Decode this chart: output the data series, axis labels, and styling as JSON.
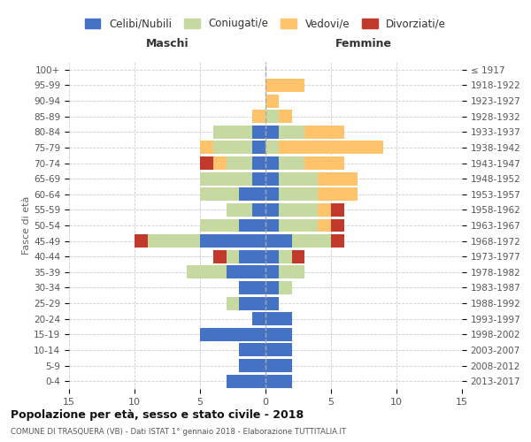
{
  "age_groups": [
    "0-4",
    "5-9",
    "10-14",
    "15-19",
    "20-24",
    "25-29",
    "30-34",
    "35-39",
    "40-44",
    "45-49",
    "50-54",
    "55-59",
    "60-64",
    "65-69",
    "70-74",
    "75-79",
    "80-84",
    "85-89",
    "90-94",
    "95-99",
    "100+"
  ],
  "birth_years": [
    "2013-2017",
    "2008-2012",
    "2003-2007",
    "1998-2002",
    "1993-1997",
    "1988-1992",
    "1983-1987",
    "1978-1982",
    "1973-1977",
    "1968-1972",
    "1963-1967",
    "1958-1962",
    "1953-1957",
    "1948-1952",
    "1943-1947",
    "1938-1942",
    "1933-1937",
    "1928-1932",
    "1923-1927",
    "1918-1922",
    "≤ 1917"
  ],
  "colors": {
    "celibe": "#4472C4",
    "coniugato": "#C6D9A0",
    "vedovo": "#FFC36B",
    "divorziato": "#C0392B"
  },
  "male": {
    "celibe": [
      3,
      2,
      2,
      5,
      1,
      2,
      2,
      3,
      2,
      5,
      2,
      1,
      2,
      1,
      1,
      1,
      1,
      0,
      0,
      0,
      0
    ],
    "coniugato": [
      0,
      0,
      0,
      0,
      0,
      1,
      0,
      3,
      1,
      4,
      3,
      2,
      3,
      4,
      2,
      3,
      3,
      0,
      0,
      0,
      0
    ],
    "vedovo": [
      0,
      0,
      0,
      0,
      0,
      0,
      0,
      0,
      0,
      0,
      0,
      0,
      0,
      0,
      1,
      1,
      0,
      1,
      0,
      0,
      0
    ],
    "divorziato": [
      0,
      0,
      0,
      0,
      0,
      0,
      0,
      0,
      1,
      1,
      0,
      0,
      0,
      0,
      1,
      0,
      0,
      0,
      0,
      0,
      0
    ]
  },
  "female": {
    "nubile": [
      2,
      2,
      2,
      2,
      2,
      1,
      1,
      1,
      1,
      2,
      1,
      1,
      1,
      1,
      1,
      0,
      1,
      0,
      0,
      0,
      0
    ],
    "coniugata": [
      0,
      0,
      0,
      0,
      0,
      0,
      1,
      2,
      1,
      3,
      3,
      3,
      3,
      3,
      2,
      1,
      2,
      1,
      0,
      0,
      0
    ],
    "vedova": [
      0,
      0,
      0,
      0,
      0,
      0,
      0,
      0,
      0,
      0,
      1,
      1,
      3,
      3,
      3,
      8,
      3,
      1,
      1,
      3,
      0
    ],
    "divorziata": [
      0,
      0,
      0,
      0,
      0,
      0,
      0,
      0,
      1,
      1,
      1,
      1,
      0,
      0,
      0,
      0,
      0,
      0,
      0,
      0,
      0
    ]
  },
  "xlim": 15,
  "title": "Popolazione per età, sesso e stato civile - 2018",
  "subtitle": "COMUNE DI TRASQUERA (VB) - Dati ISTAT 1° gennaio 2018 - Elaborazione TUTTITALIA.IT",
  "xlabel_left": "Maschi",
  "xlabel_right": "Femmine",
  "ylabel_left": "Fasce di età",
  "legend_labels": [
    "Celibi/Nubili",
    "Coniugati/e",
    "Vedovi/e",
    "Divorziati/e"
  ],
  "bg_color": "#ffffff",
  "grid_color": "#cccccc"
}
